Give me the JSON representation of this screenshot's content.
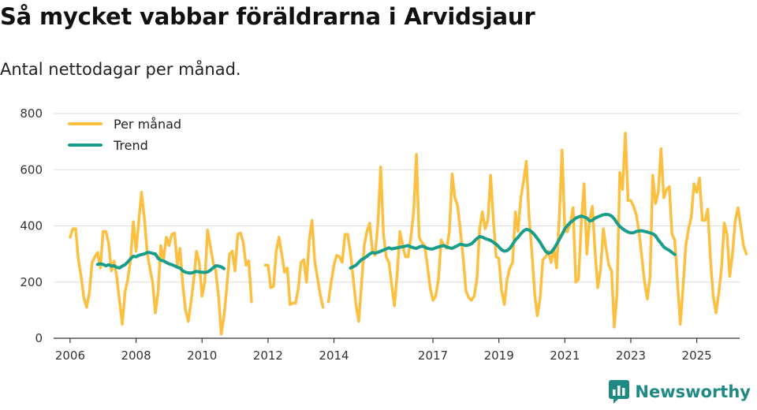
{
  "header": {
    "title": "Så mycket vabbar föräldrarna i Arvidsjaur",
    "subtitle": "Antal nettodagar per månad."
  },
  "brand": {
    "name": "Newsworthy"
  },
  "colors": {
    "monthly": "#fdbf3f",
    "trend": "#1a9e8a",
    "grid": "#dddddd",
    "axis": "#333333",
    "brand": "#1f8a84"
  },
  "chart_data": {
    "type": "line",
    "title": "Så mycket vabbar föräldrarna i Arvidsjaur",
    "subtitle": "Antal nettodagar per månad.",
    "xlabel": "",
    "ylabel": "",
    "ylim": [
      0,
      800
    ],
    "xlim": [
      2005.5,
      2026.3
    ],
    "yticks": [
      0,
      200,
      400,
      600,
      800
    ],
    "xticks": [
      2006,
      2008,
      2010,
      2012,
      2014,
      2017,
      2019,
      2021,
      2023,
      2025
    ],
    "grid": true,
    "legend_position": "top-left",
    "series": [
      {
        "name": "Per månad",
        "key": "monthly",
        "segments": [
          {
            "start": 2006.0,
            "values": [
              360,
              390,
              390,
              280,
              220,
              145,
              110,
              160,
              270,
              290,
              305,
              250,
              380,
              380,
              340,
              240,
              275,
              215,
              130,
              50,
              165,
              210,
              280,
              415,
              310,
              420,
              520,
              430,
              310,
              250,
              200,
              90,
              165,
              330,
              280,
              360,
              330,
              370,
              375,
              260,
              320,
              190,
              100,
              60,
              130,
              210,
              310,
              270,
              150,
              200,
              385,
              330,
              270,
              240,
              150,
              15,
              80,
              180,
              300,
              310,
              240,
              370,
              375,
              340,
              260,
              275,
              130
            ]
          },
          {
            "start": 2011.917,
            "values": [
              260,
              260,
              180,
              185,
              310,
              360,
              300,
              235,
              250,
              120,
              125,
              125,
              175,
              270,
              280,
              200,
              350,
              420,
              275,
              215,
              155,
              110
            ]
          },
          {
            "start": 2013.833,
            "values": [
              130,
              200,
              260,
              295,
              290,
              270,
              370,
              370,
              305,
              215,
              120,
              60,
              190,
              330,
              380,
              410,
              310,
              295,
              410,
              610,
              370,
              290,
              270,
              190,
              115,
              230,
              380,
              330,
              290,
              290,
              360,
              450,
              655,
              360,
              340,
              330,
              260,
              180,
              135,
              150,
              210,
              350,
              330,
              320,
              380,
              585,
              500,
              470,
              380,
              290,
              170,
              145,
              135,
              150,
              210,
              390,
              450,
              390,
              420,
              580,
              420,
              290,
              285,
              170,
              120,
              210,
              250,
              270,
              450,
              380,
              500,
              560,
              630,
              430,
              310,
              160,
              80,
              140,
              280,
              290,
              310,
              270,
              320,
              250,
              430,
              670,
              380,
              380,
              410,
              465,
              200,
              210,
              410,
              550,
              300,
              420,
              470,
              310,
              180,
              245,
              390,
              320,
              260,
              240,
              40,
              160,
              590,
              530,
              730,
              490,
              490,
              470,
              440,
              380,
              290,
              200,
              140,
              220,
              580,
              480,
              520,
              675,
              500,
              530,
              540,
              370,
              350,
              200,
              50,
              180,
              330,
              390,
              430,
              550,
              520,
              570,
              420,
              420,
              460,
              280,
              150,
              90,
              160,
              250,
              410,
              370,
              220,
              300,
              420,
              465,
              400,
              330,
              300
            ]
          }
        ]
      },
      {
        "name": "Trend",
        "key": "trend",
        "segments": [
          {
            "start": 2006.833,
            "values": [
              263,
              265,
              263,
              258,
              262,
              257,
              258,
              252,
              250,
              257,
              262,
              272,
              283,
              292,
              290,
              295,
              298,
              300,
              305,
              305,
              302,
              300,
              285,
              278,
              275,
              270,
              265,
              262,
              258,
              253,
              250,
              240,
              235,
              233,
              232,
              235,
              238,
              236,
              235,
              234,
              236,
              242,
              250,
              258,
              257,
              254,
              248
            ]
          },
          {
            "start": 2014.5,
            "values": [
              250,
              255,
              260,
              270,
              280,
              285,
              292,
              300,
              305,
              303,
              306,
              310,
              314,
              318,
              322,
              318,
              320,
              322,
              324,
              326,
              328,
              330,
              325,
              322,
              320,
              325,
              328,
              325,
              320,
              318,
              318,
              322,
              325,
              328,
              330,
              325,
              322,
              320,
              325,
              330,
              335,
              333,
              330,
              332,
              336,
              345,
              355,
              362,
              360,
              355,
              352,
              348,
              342,
              335,
              325,
              315,
              310,
              312,
              320,
              335,
              350,
              360,
              372,
              382,
              388,
              385,
              378,
              368,
              355,
              342,
              325,
              310,
              302,
              306,
              318,
              335,
              352,
              370,
              390,
              402,
              412,
              420,
              428,
              432,
              435,
              432,
              428,
              418,
              420,
              428,
              432,
              436,
              440,
              441,
              440,
              435,
              425,
              410,
              398,
              390,
              383,
              378,
              375,
              376,
              380,
              382,
              383,
              380,
              378,
              375,
              372,
              365,
              350,
              338,
              325,
              318,
              313,
              305,
              298
            ]
          }
        ]
      }
    ]
  }
}
